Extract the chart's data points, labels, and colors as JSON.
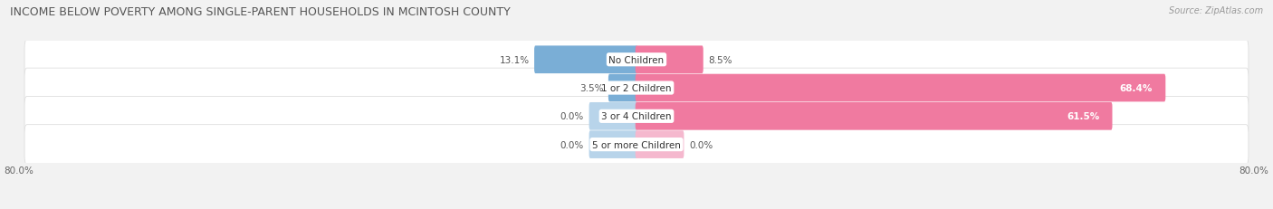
{
  "title": "INCOME BELOW POVERTY AMONG SINGLE-PARENT HOUSEHOLDS IN MCINTOSH COUNTY",
  "source": "Source: ZipAtlas.com",
  "categories": [
    "No Children",
    "1 or 2 Children",
    "3 or 4 Children",
    "5 or more Children"
  ],
  "single_father": [
    13.1,
    3.5,
    0.0,
    0.0
  ],
  "single_mother": [
    8.5,
    68.4,
    61.5,
    0.0
  ],
  "father_color": "#7aaed6",
  "father_color_light": "#b8d4ea",
  "mother_color": "#f07aa0",
  "mother_color_light": "#f5b8ce",
  "axis_min": -80.0,
  "axis_max": 80.0,
  "axis_label_left": "80.0%",
  "axis_label_right": "80.0%",
  "bg_color": "#f2f2f2",
  "row_bg_color": "#ffffff",
  "row_border_color": "#d8d8d8",
  "title_fontsize": 9,
  "source_fontsize": 7,
  "label_fontsize": 7.5,
  "category_fontsize": 7.5,
  "bar_height": 0.72,
  "ghost_bar_width": 6.0
}
